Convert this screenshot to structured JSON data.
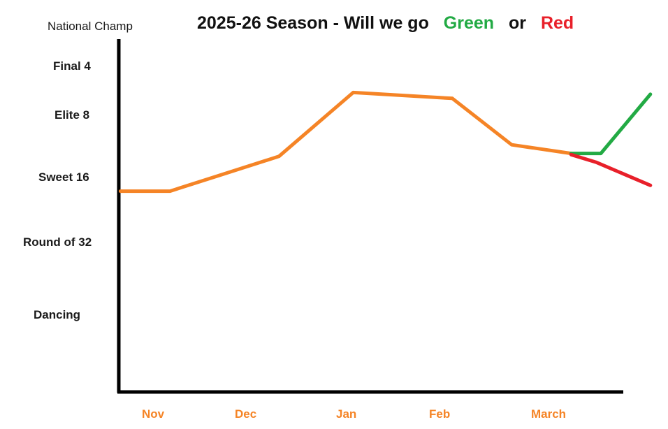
{
  "chart_data": {
    "type": "line",
    "title": {
      "prefix": "2025-26 Season - Will we go",
      "green_word": "Green",
      "middle_word": "or",
      "red_word": "Red"
    },
    "y_levels": [
      "Dancing",
      "Round of 32",
      "Sweet 16",
      "Elite 8",
      "Final 4",
      "National Champ"
    ],
    "x_ticks": [
      "Nov",
      "Dec",
      "Jan",
      "Feb",
      "March"
    ],
    "xlim": [
      -0.4,
      5.0
    ],
    "ylim": [
      -1.0,
      5.2
    ],
    "series": [
      {
        "name": "season",
        "color": "#f58426",
        "points": [
          [
            -0.35,
            2.15
          ],
          [
            0.15,
            2.15
          ],
          [
            1.25,
            2.75
          ],
          [
            2.0,
            3.85
          ],
          [
            3.0,
            3.75
          ],
          [
            3.6,
            2.95
          ],
          [
            4.2,
            2.8
          ]
        ]
      },
      {
        "name": "Green",
        "color": "#22aa44",
        "points": [
          [
            4.2,
            2.8
          ],
          [
            4.5,
            2.8
          ],
          [
            5.0,
            3.82
          ]
        ]
      },
      {
        "name": "Red",
        "color": "#e8202a",
        "points": [
          [
            4.2,
            2.78
          ],
          [
            4.45,
            2.65
          ],
          [
            5.0,
            2.25
          ]
        ]
      }
    ],
    "colors": {
      "axis": "#000000",
      "x_tick_label": "#f58426",
      "green": "#22aa44",
      "red": "#e8202a"
    }
  }
}
